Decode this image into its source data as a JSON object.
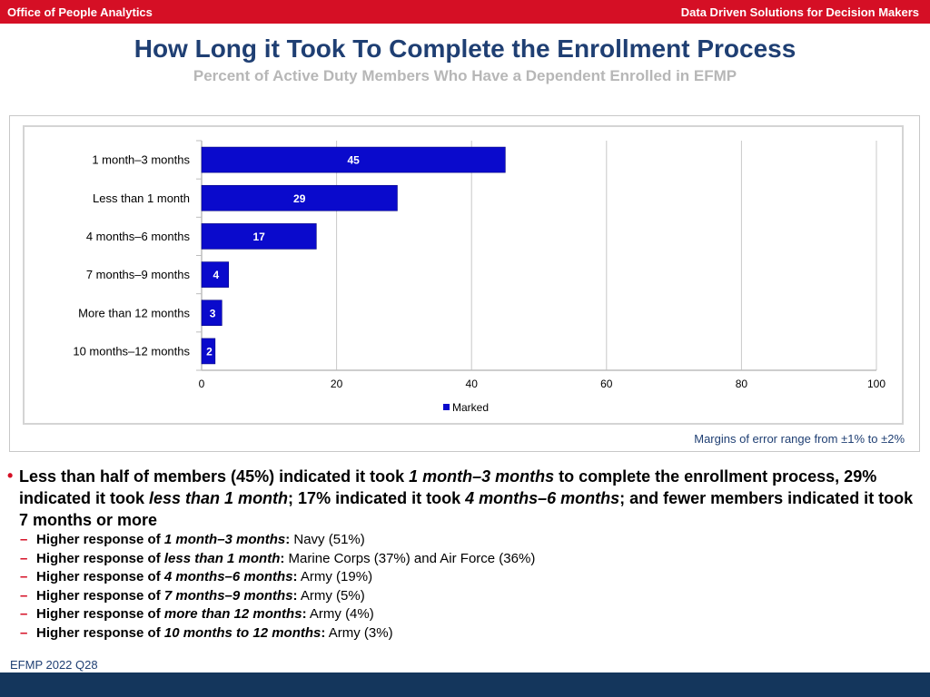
{
  "header": {
    "left": "Office of People Analytics",
    "right": "Data Driven Solutions for Decision Makers"
  },
  "colors": {
    "header_red": "#d50f25",
    "title_blue": "#1f3f73",
    "bar_blue": "#0a0acc",
    "bottom_navy": "#14365c"
  },
  "chart_data": {
    "type": "bar",
    "orientation": "horizontal",
    "title": "How Long it Took To Complete the Enrollment Process",
    "subtitle": "Percent of Active Duty Members Who Have a Dependent Enrolled in EFMP",
    "categories": [
      "1 month–3 months",
      "Less than 1 month",
      "4 months–6 months",
      "7 months–9 months",
      "More than 12 months",
      "10 months–12 months"
    ],
    "series": [
      {
        "name": "Marked",
        "values": [
          45,
          29,
          17,
          4,
          3,
          2
        ]
      }
    ],
    "xlim": [
      0,
      100
    ],
    "xticks": [
      0,
      20,
      40,
      60,
      80,
      100
    ],
    "grid": true,
    "legend_position": "bottom",
    "xlabel": "",
    "ylabel": ""
  },
  "margin_note": "Margins of error range from ±1% to ±2%",
  "summary": {
    "main": [
      {
        "t": "Less than half of members (45%) indicated it took ",
        "i": false
      },
      {
        "t": "1 month–3 months",
        "i": true
      },
      {
        "t": " to complete the enrollment process, 29% indicated it took ",
        "i": false
      },
      {
        "t": "less than 1 month",
        "i": true
      },
      {
        "t": "; 17% indicated it took ",
        "i": false
      },
      {
        "t": "4 months–6 months",
        "i": true
      },
      {
        "t": "; and fewer members indicated it took 7 months or more",
        "i": false
      }
    ],
    "subs": [
      {
        "lead": "Higher response of ",
        "em": "1 month–3 months",
        "colon": ":",
        "rest": " Navy (51%)"
      },
      {
        "lead": "Higher response of ",
        "em": "less than 1 month",
        "colon": ":",
        "rest": "  Marine Corps (37%) and Air Force (36%)"
      },
      {
        "lead": "Higher response of ",
        "em": "4 months–6 months",
        "colon": ":",
        "rest": " Army (19%)"
      },
      {
        "lead": "Higher response of ",
        "em": "7 months–9 months",
        "colon": ":",
        "rest": "  Army (5%)"
      },
      {
        "lead": "Higher response of ",
        "em": "more than 12 months",
        "colon": ":",
        "rest": " Army (4%)"
      },
      {
        "lead": "Higher response of ",
        "em": "10 months to 12 months",
        "colon": ":",
        "rest": " Army (3%)"
      }
    ]
  },
  "footer": {
    "source": "EFMP 2022 Q28"
  }
}
